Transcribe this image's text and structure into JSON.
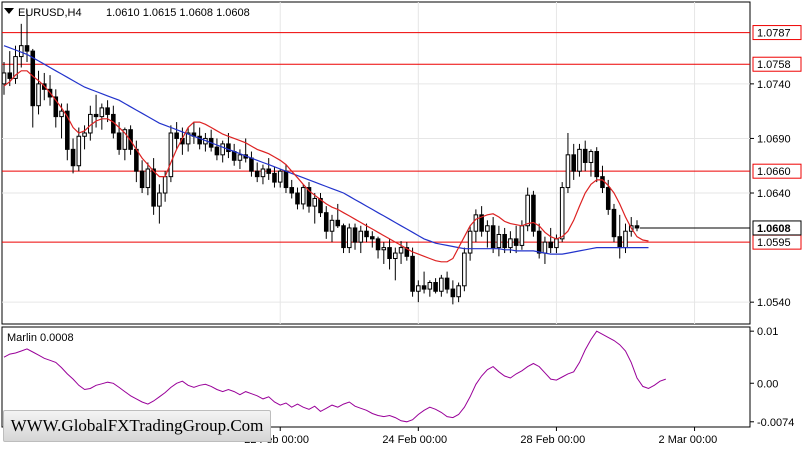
{
  "header": {
    "symbol": "EURUSD,H4",
    "ohlc": "1.0610 1.0615 1.0608 1.0608"
  },
  "watermark": "WWW.GlobalFXTradingGroup.Com",
  "indicator": {
    "label": "Marlin 0.0008",
    "ticks": [
      "0.01",
      "0.00",
      "-0.0074"
    ]
  },
  "colors": {
    "bull": "#ffffff",
    "bear": "#000000",
    "ma_fast": "#dd2222",
    "ma_slow": "#2233cc",
    "level": "#ee0000",
    "osc": "#990099"
  },
  "chart_data": {
    "type": "candlestick",
    "title": "EURUSD,H4",
    "ylim": [
      1.052,
      1.0815
    ],
    "yticks": [
      "1.0740",
      "1.0690",
      "1.0640",
      "1.0540"
    ],
    "xticks": [
      {
        "label": "22 Feb 00:00",
        "index": 48
      },
      {
        "label": "24 Feb 00:00",
        "index": 72
      },
      {
        "label": "28 Feb 00:00",
        "index": 96
      },
      {
        "label": "2 Mar 00:00",
        "index": 120
      }
    ],
    "levels": [
      1.0787,
      1.0758,
      1.066,
      1.0595
    ],
    "level_labels": [
      "1.0787",
      "1.0758",
      "1.0660",
      "1.0595"
    ],
    "last_price": "1.0608",
    "ohlc": [
      [
        1.074,
        1.076,
        1.073,
        1.075
      ],
      [
        1.075,
        1.077,
        1.0738,
        1.0745
      ],
      [
        1.0745,
        1.0775,
        1.074,
        1.0765
      ],
      [
        1.0765,
        1.0795,
        1.0755,
        1.0775
      ],
      [
        1.0775,
        1.0808,
        1.076,
        1.077
      ],
      [
        1.077,
        1.0772,
        1.07,
        1.072
      ],
      [
        1.072,
        1.0752,
        1.0712,
        1.074
      ],
      [
        1.074,
        1.075,
        1.0725,
        1.0735
      ],
      [
        1.0735,
        1.0748,
        1.072,
        1.0728
      ],
      [
        1.0728,
        1.0735,
        1.07,
        1.071
      ],
      [
        1.071,
        1.0722,
        1.069,
        1.0715
      ],
      [
        1.0715,
        1.0722,
        1.067,
        1.068
      ],
      [
        1.068,
        1.069,
        1.0658,
        1.0665
      ],
      [
        1.0665,
        1.07,
        1.066,
        1.0692
      ],
      [
        1.0692,
        1.0702,
        1.068,
        1.0695
      ],
      [
        1.0695,
        1.072,
        1.0688,
        1.0712
      ],
      [
        1.0712,
        1.073,
        1.07,
        1.071
      ],
      [
        1.071,
        1.0722,
        1.0698,
        1.0718
      ],
      [
        1.0718,
        1.0725,
        1.0705,
        1.0712
      ],
      [
        1.0712,
        1.072,
        1.069,
        1.0695
      ],
      [
        1.0695,
        1.0705,
        1.0675,
        1.068
      ],
      [
        1.068,
        1.07,
        1.067,
        1.0698
      ],
      [
        1.0698,
        1.0702,
        1.0675,
        1.068
      ],
      [
        1.068,
        1.0688,
        1.065,
        1.066
      ],
      [
        1.066,
        1.067,
        1.064,
        1.0645
      ],
      [
        1.0645,
        1.0668,
        1.0638,
        1.0662
      ],
      [
        1.0662,
        1.0672,
        1.062,
        1.0628
      ],
      [
        1.0628,
        1.0648,
        1.0612,
        1.064
      ],
      [
        1.064,
        1.066,
        1.0632,
        1.0655
      ],
      [
        1.0655,
        1.0702,
        1.065,
        1.0695
      ],
      [
        1.0695,
        1.0705,
        1.068,
        1.069
      ],
      [
        1.069,
        1.07,
        1.0675,
        1.0685
      ],
      [
        1.0685,
        1.07,
        1.0678,
        1.0695
      ],
      [
        1.0695,
        1.0705,
        1.0685,
        1.0692
      ],
      [
        1.0692,
        1.07,
        1.068,
        1.0685
      ],
      [
        1.0685,
        1.0695,
        1.0678,
        1.069
      ],
      [
        1.069,
        1.0698,
        1.0678,
        1.0682
      ],
      [
        1.0682,
        1.069,
        1.067,
        1.0675
      ],
      [
        1.0675,
        1.0688,
        1.0668,
        1.0685
      ],
      [
        1.0685,
        1.0695,
        1.0672,
        1.0678
      ],
      [
        1.0678,
        1.0685,
        1.0665,
        1.067
      ],
      [
        1.067,
        1.068,
        1.0662,
        1.0675
      ],
      [
        1.0675,
        1.069,
        1.0668,
        1.0672
      ],
      [
        1.0672,
        1.0678,
        1.0655,
        1.066
      ],
      [
        1.066,
        1.0668,
        1.065,
        1.0655
      ],
      [
        1.0655,
        1.0666,
        1.0648,
        1.0662
      ],
      [
        1.0662,
        1.0672,
        1.0652,
        1.0658
      ],
      [
        1.0658,
        1.0664,
        1.0645,
        1.065
      ],
      [
        1.065,
        1.0662,
        1.0645,
        1.066
      ],
      [
        1.066,
        1.0666,
        1.064,
        1.0645
      ],
      [
        1.0645,
        1.0652,
        1.0635,
        1.064
      ],
      [
        1.064,
        1.0645,
        1.0625,
        1.063
      ],
      [
        1.063,
        1.0648,
        1.0625,
        1.0645
      ],
      [
        1.0645,
        1.065,
        1.0622,
        1.0628
      ],
      [
        1.0628,
        1.064,
        1.0612,
        1.0635
      ],
      [
        1.0635,
        1.064,
        1.0618,
        1.0622
      ],
      [
        1.0622,
        1.0628,
        1.0598,
        1.0605
      ],
      [
        1.0605,
        1.062,
        1.0595,
        1.0615
      ],
      [
        1.0615,
        1.063,
        1.0608,
        1.061
      ],
      [
        1.061,
        1.0612,
        1.0585,
        1.059
      ],
      [
        1.059,
        1.0612,
        1.0585,
        1.0608
      ],
      [
        1.0608,
        1.0612,
        1.0588,
        1.0595
      ],
      [
        1.0595,
        1.061,
        1.0585,
        1.0605
      ],
      [
        1.0605,
        1.0612,
        1.0595,
        1.06
      ],
      [
        1.06,
        1.0605,
        1.059,
        1.0598
      ],
      [
        1.0598,
        1.06,
        1.058,
        1.0588
      ],
      [
        1.0588,
        1.0595,
        1.0575,
        1.059
      ],
      [
        1.059,
        1.0598,
        1.057,
        1.058
      ],
      [
        1.058,
        1.059,
        1.056,
        1.0585
      ],
      [
        1.0585,
        1.0596,
        1.0575,
        1.059
      ],
      [
        1.059,
        1.0595,
        1.0578,
        1.0582
      ],
      [
        1.0582,
        1.059,
        1.0545,
        1.055
      ],
      [
        1.055,
        1.056,
        1.054,
        1.0555
      ],
      [
        1.0555,
        1.0568,
        1.0548,
        1.0552
      ],
      [
        1.0552,
        1.056,
        1.0545,
        1.0558
      ],
      [
        1.0558,
        1.0562,
        1.0548,
        1.055
      ],
      [
        1.055,
        1.0565,
        1.0545,
        1.0562
      ],
      [
        1.0562,
        1.0568,
        1.0548,
        1.0552
      ],
      [
        1.0552,
        1.056,
        1.0538,
        1.0545
      ],
      [
        1.0545,
        1.0558,
        1.054,
        1.0555
      ],
      [
        1.0555,
        1.059,
        1.055,
        1.0585
      ],
      [
        1.0585,
        1.061,
        1.0578,
        1.0605
      ],
      [
        1.0605,
        1.0625,
        1.0595,
        1.062
      ],
      [
        1.062,
        1.0628,
        1.06,
        1.0605
      ],
      [
        1.0605,
        1.0615,
        1.059,
        1.061
      ],
      [
        1.061,
        1.0618,
        1.0585,
        1.059
      ],
      [
        1.059,
        1.061,
        1.0582,
        1.0602
      ],
      [
        1.0602,
        1.0608,
        1.0585,
        1.059
      ],
      [
        1.059,
        1.0605,
        1.0585,
        1.0598
      ],
      [
        1.0598,
        1.061,
        1.0585,
        1.0592
      ],
      [
        1.0592,
        1.0615,
        1.0588,
        1.061
      ],
      [
        1.061,
        1.0645,
        1.0605,
        1.0638
      ],
      [
        1.0638,
        1.0642,
        1.06,
        1.0605
      ],
      [
        1.0605,
        1.0612,
        1.058,
        1.0585
      ],
      [
        1.0585,
        1.06,
        1.0575,
        1.0595
      ],
      [
        1.0595,
        1.0608,
        1.0585,
        1.059
      ],
      [
        1.059,
        1.0602,
        1.0585,
        1.0598
      ],
      [
        1.0598,
        1.065,
        1.0595,
        1.0645
      ],
      [
        1.0645,
        1.0695,
        1.064,
        1.0675
      ],
      [
        1.0675,
        1.0685,
        1.0652,
        1.066
      ],
      [
        1.066,
        1.0685,
        1.0655,
        1.068
      ],
      [
        1.068,
        1.0688,
        1.066,
        1.0668
      ],
      [
        1.0668,
        1.068,
        1.0655,
        1.0678
      ],
      [
        1.0678,
        1.0682,
        1.065,
        1.0655
      ],
      [
        1.0655,
        1.0665,
        1.064,
        1.0645
      ],
      [
        1.0645,
        1.0652,
        1.062,
        1.0625
      ],
      [
        1.0625,
        1.063,
        1.0595,
        1.06
      ],
      [
        1.06,
        1.062,
        1.058,
        1.059
      ],
      [
        1.059,
        1.0612,
        1.0585,
        1.0605
      ],
      [
        1.0605,
        1.0618,
        1.06,
        1.061
      ],
      [
        1.061,
        1.0615,
        1.0605,
        1.0608
      ]
    ],
    "ma_fast": [
      1.0738,
      1.0742,
      1.0748,
      1.0752,
      1.0752,
      1.0747,
      1.0743,
      1.0738,
      1.0732,
      1.0725,
      1.0718,
      1.071,
      1.07,
      1.0695,
      1.0697,
      1.0702,
      1.0706,
      1.0708,
      1.0708,
      1.0705,
      1.07,
      1.0695,
      1.0688,
      1.068,
      1.0672,
      1.0666,
      1.066,
      1.0655,
      1.0655,
      1.0668,
      1.068,
      1.069,
      1.07,
      1.0705,
      1.0705,
      1.0703,
      1.07,
      1.0697,
      1.0694,
      1.0692,
      1.069,
      1.0688,
      1.0686,
      1.0683,
      1.068,
      1.0678,
      1.0676,
      1.0673,
      1.067,
      1.0666,
      1.066,
      1.0654,
      1.0648,
      1.0642,
      1.0638,
      1.0634,
      1.063,
      1.0627,
      1.0625,
      1.0622,
      1.0619,
      1.0616,
      1.0613,
      1.061,
      1.0607,
      1.0604,
      1.0601,
      1.0598,
      1.0595,
      1.0592,
      1.0589,
      1.0586,
      1.0584,
      1.0582,
      1.058,
      1.0578,
      1.0577,
      1.0577,
      1.058,
      1.059,
      1.06,
      1.061,
      1.0616,
      1.0618,
      1.062,
      1.0621,
      1.0618,
      1.0614,
      1.0612,
      1.0611,
      1.061,
      1.0612,
      1.0613,
      1.061,
      1.0604,
      1.06,
      1.0598,
      1.06,
      1.0605,
      1.0615,
      1.0628,
      1.064,
      1.0648,
      1.0652,
      1.0652,
      1.0647,
      1.064,
      1.063,
      1.0618,
      1.0608,
      1.06,
      1.0597,
      1.0596
    ],
    "ma_slow": [
      1.0775,
      1.0773,
      1.0771,
      1.0769,
      1.0767,
      1.0764,
      1.0761,
      1.0758,
      1.0755,
      1.0752,
      1.0749,
      1.0746,
      1.0743,
      1.074,
      1.0737,
      1.0735,
      1.0733,
      1.0731,
      1.0729,
      1.0727,
      1.0725,
      1.0722,
      1.0719,
      1.0716,
      1.0713,
      1.071,
      1.0707,
      1.0704,
      1.0702,
      1.07,
      1.0698,
      1.0696,
      1.0694,
      1.0692,
      1.069,
      1.0688,
      1.0686,
      1.0684,
      1.0682,
      1.068,
      1.0678,
      1.0676,
      1.0674,
      1.0672,
      1.067,
      1.0668,
      1.0666,
      1.0664,
      1.0662,
      1.066,
      1.0658,
      1.0656,
      1.0654,
      1.0652,
      1.065,
      1.0648,
      1.0646,
      1.0644,
      1.0642,
      1.064,
      1.0637,
      1.0634,
      1.0631,
      1.0628,
      1.0625,
      1.0622,
      1.0619,
      1.0616,
      1.0613,
      1.061,
      1.0607,
      1.0604,
      1.0601,
      1.0598,
      1.0596,
      1.0594,
      1.0593,
      1.0592,
      1.0591,
      1.059,
      1.0589,
      1.0589,
      1.0589,
      1.0589,
      1.0589,
      1.0589,
      1.0589,
      1.0588,
      1.0588,
      1.0587,
      1.0587,
      1.0587,
      1.0587,
      1.0586,
      1.0585,
      1.0584,
      1.0584,
      1.0584,
      1.0585,
      1.0586,
      1.0587,
      1.0588,
      1.0589,
      1.059,
      1.059,
      1.059,
      1.059,
      1.059,
      1.059,
      1.059,
      1.059,
      1.059,
      1.059
    ],
    "oscillator": {
      "label": "Marlin 0.0008",
      "ylim": [
        -0.0084,
        0.0108
      ],
      "values": [
        0.005,
        0.0056,
        0.0058,
        0.0062,
        0.0066,
        0.006,
        0.0054,
        0.0048,
        0.0044,
        0.004,
        0.003,
        0.0018,
        0.0008,
        -0.0004,
        -0.0012,
        -0.001,
        -0.0004,
        -0.0001,
        0.0002,
        0.0,
        -0.0008,
        -0.0016,
        -0.0024,
        -0.003,
        -0.0036,
        -0.004,
        -0.0034,
        -0.0026,
        -0.0018,
        -0.0008,
        0.0,
        0.0004,
        -0.0004,
        -0.0008,
        -0.0004,
        -0.0002,
        -0.0006,
        -0.0012,
        -0.0016,
        -0.0012,
        -0.0016,
        -0.0022,
        -0.0016,
        -0.002,
        -0.0024,
        -0.003,
        -0.0026,
        -0.0036,
        -0.0042,
        -0.0038,
        -0.0046,
        -0.004,
        -0.0046,
        -0.005,
        -0.0044,
        -0.0054,
        -0.0048,
        -0.0042,
        -0.0046,
        -0.004,
        -0.0036,
        -0.0044,
        -0.0048,
        -0.0052,
        -0.0058,
        -0.0062,
        -0.0064,
        -0.0062,
        -0.0066,
        -0.0072,
        -0.0074,
        -0.007,
        -0.006,
        -0.0052,
        -0.0046,
        -0.005,
        -0.0056,
        -0.0064,
        -0.0066,
        -0.006,
        -0.0046,
        -0.0026,
        -0.0002,
        0.0014,
        0.0026,
        0.0032,
        0.0022,
        0.0014,
        0.001,
        0.0018,
        0.0024,
        0.0032,
        0.0038,
        0.0032,
        0.002,
        0.0008,
        0.0006,
        0.0012,
        0.0018,
        0.0022,
        0.004,
        0.0064,
        0.0084,
        0.01,
        0.0094,
        0.0088,
        0.0082,
        0.0074,
        0.0062,
        0.004,
        0.001,
        -0.0006,
        -0.001,
        -0.0004,
        0.0004,
        0.0008
      ]
    }
  }
}
